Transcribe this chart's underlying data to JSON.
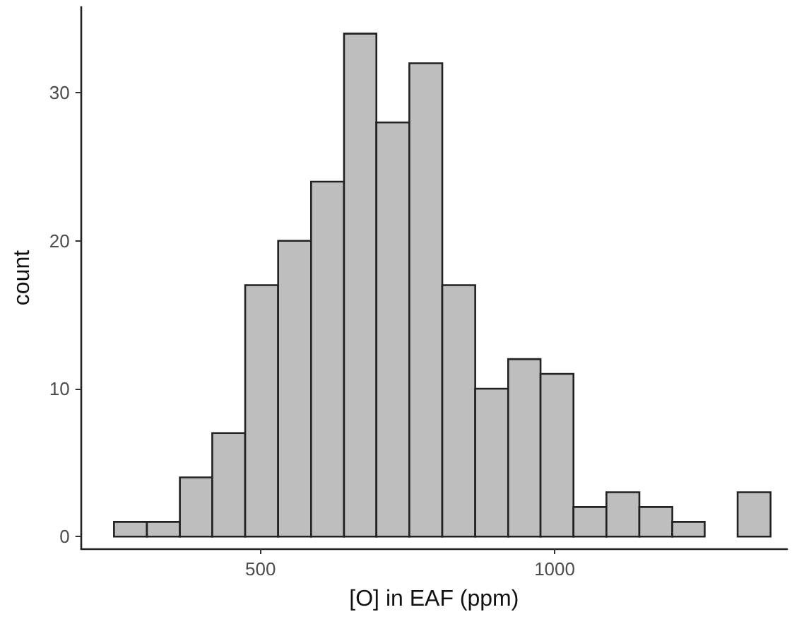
{
  "chart_data": {
    "type": "histogram",
    "xlabel": "[O] in EAF (ppm)",
    "ylabel": "count",
    "bins": [
      251,
      307,
      363,
      418,
      474,
      530,
      586,
      642,
      697,
      753,
      809,
      865,
      921,
      976,
      1032,
      1088,
      1144,
      1200,
      1255,
      1311,
      1367
    ],
    "values": [
      1,
      1,
      4,
      7,
      17,
      20,
      24,
      34,
      28,
      32,
      17,
      10,
      12,
      11,
      2,
      3,
      2,
      1,
      0,
      3
    ],
    "color": "#bebebe",
    "xlim": [
      195,
      1395
    ],
    "xticks": [
      500,
      1000
    ],
    "ylim": [
      -0.8,
      35.8
    ],
    "yticks": [
      0,
      10,
      20,
      30
    ],
    "grid": false
  }
}
